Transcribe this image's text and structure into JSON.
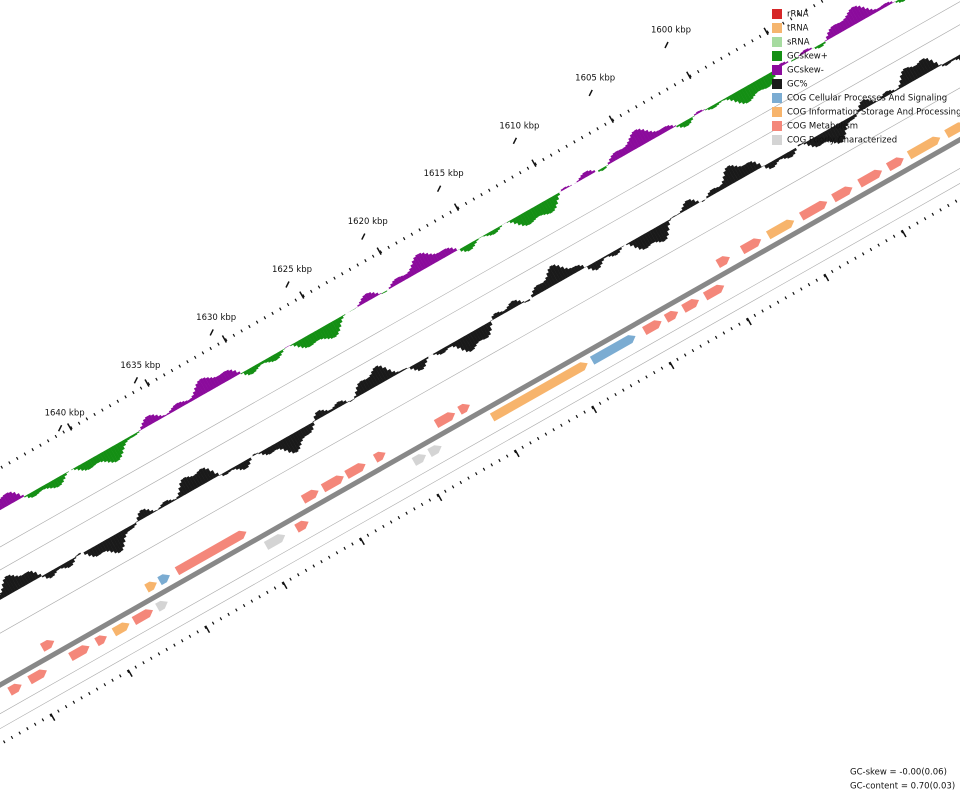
{
  "tick_labels": [
    "1600 kbp",
    "1605 kbp",
    "1610 kbp",
    "1615 kbp",
    "1620 kbp",
    "1625 kbp",
    "1630 kbp",
    "1635 kbp",
    "1640 kbp"
  ],
  "legend": [
    {
      "label": "rRNA",
      "color": "#d62728"
    },
    {
      "label": "tRNA",
      "color": "#f5b56e"
    },
    {
      "label": "sRNA",
      "color": "#a6dba0"
    },
    {
      "label": "GCskew+",
      "color": "#148f14"
    },
    {
      "label": "GCskew-",
      "color": "#8b0b9c"
    },
    {
      "label": "GC%",
      "color": "#1a1a1a"
    },
    {
      "label": "COG Cellular Processes And Signaling",
      "color": "#7bacd2"
    },
    {
      "label": "COG Information Storage And Processing",
      "color": "#f7b46c"
    },
    {
      "label": "COG Metabolism",
      "color": "#f4877a"
    },
    {
      "label": "COG Poorly Characterized",
      "color": "#d4d4d4"
    }
  ],
  "stats": [
    "GC-skew = -0.00(0.06)",
    "GC-content = 0.70(0.03)"
  ]
}
